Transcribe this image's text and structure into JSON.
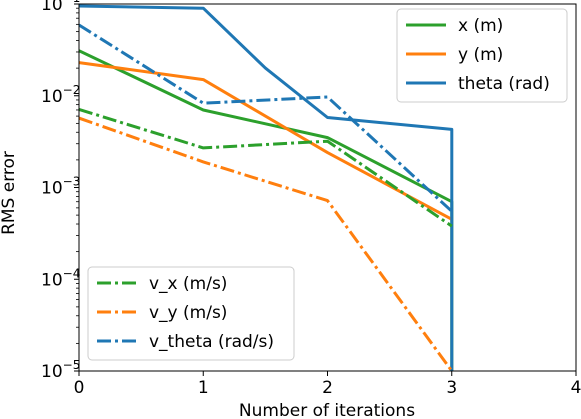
{
  "chart_data": {
    "type": "line",
    "title": "",
    "xlabel": "Number of iterations",
    "ylabel": "RMS error",
    "xlim": [
      0,
      4
    ],
    "ylim": [
      1e-05,
      0.1
    ],
    "yscale": "log",
    "grid": false,
    "x_ticks": [
      {
        "value": 0,
        "label": "0"
      },
      {
        "value": 1,
        "label": "1"
      },
      {
        "value": 2,
        "label": "2"
      },
      {
        "value": 3,
        "label": "3"
      },
      {
        "value": 4,
        "label": "4"
      }
    ],
    "y_ticks": [
      {
        "value": 1e-05,
        "base": "10",
        "exp": "−5"
      },
      {
        "value": 0.0001,
        "base": "10",
        "exp": "−4"
      },
      {
        "value": 0.001,
        "base": "10",
        "exp": "−3"
      },
      {
        "value": 0.01,
        "base": "10",
        "exp": "−2"
      },
      {
        "value": 0.1,
        "base": "10",
        "exp": "−1"
      }
    ],
    "series": [
      {
        "name": "x (m)",
        "color": "#2ca02c",
        "style": "solid",
        "x": [
          0,
          1,
          2,
          3,
          3
        ],
        "y": [
          0.031,
          0.007,
          0.0035,
          0.0007,
          1e-05
        ]
      },
      {
        "name": "y (m)",
        "color": "#ff7f0e",
        "style": "solid",
        "x": [
          0,
          1,
          2,
          3
        ],
        "y": [
          0.023,
          0.015,
          0.0024,
          0.00045
        ]
      },
      {
        "name": "theta (rad)",
        "color": "#1f77b4",
        "style": "solid",
        "x": [
          0,
          1,
          1.5,
          2,
          3,
          3
        ],
        "y": [
          0.095,
          0.09,
          0.02,
          0.0058,
          0.0043,
          1e-05
        ]
      },
      {
        "name": "v_x (m/s)",
        "color": "#2ca02c",
        "style": "dashdot",
        "x": [
          0,
          1,
          2,
          3
        ],
        "y": [
          0.0071,
          0.0027,
          0.0032,
          0.00038
        ]
      },
      {
        "name": "v_y (m/s)",
        "color": "#ff7f0e",
        "style": "dashdot",
        "x": [
          0,
          1,
          2,
          3
        ],
        "y": [
          0.0057,
          0.0019,
          0.00072,
          1e-05
        ]
      },
      {
        "name": "v_theta (rad/s)",
        "color": "#1f77b4",
        "style": "dashdot",
        "x": [
          0,
          1,
          2,
          3
        ],
        "y": [
          0.059,
          0.0083,
          0.0097,
          0.00055
        ]
      }
    ],
    "legends": [
      {
        "placement": "top-right",
        "series": [
          "x (m)",
          "y (m)",
          "theta (rad)"
        ]
      },
      {
        "placement": "bottom-left",
        "series": [
          "v_x (m/s)",
          "v_y (m/s)",
          "v_theta (rad/s)"
        ]
      }
    ]
  }
}
